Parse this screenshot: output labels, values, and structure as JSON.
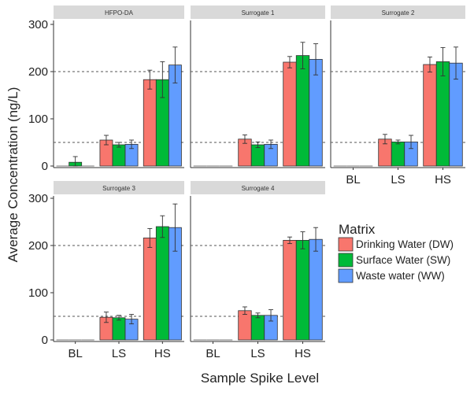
{
  "chart_data": {
    "type": "bar",
    "layout": "faceted",
    "xlabel": "Sample Spike Level",
    "ylabel": "Average Concentration (ng/L)",
    "ylim": [
      0,
      300
    ],
    "y_ticks": [
      0,
      100,
      200,
      300
    ],
    "y_tick_labels": [
      "0",
      "100",
      "200",
      "300"
    ],
    "categories": [
      "BL",
      "LS",
      "HS"
    ],
    "reference_lines": [
      50,
      200
    ],
    "grid": false,
    "legend": {
      "title": "Matrix",
      "position": "right",
      "entries": [
        {
          "name": "Drinking Water (DW)",
          "color": "#F8766D"
        },
        {
          "name": "Surface Water (SW)",
          "color": "#00BA38"
        },
        {
          "name": "Waste water (WW)",
          "color": "#619CFF"
        }
      ]
    },
    "panels": [
      {
        "title": "HFPO-DA",
        "series": [
          {
            "name": "Drinking Water (DW)",
            "values": [
              0,
              55,
              183
            ],
            "errors": [
              0,
              10,
              20
            ]
          },
          {
            "name": "Surface Water (SW)",
            "values": [
              8,
              45,
              183
            ],
            "errors": [
              12,
              5,
              38
            ]
          },
          {
            "name": "Waste water (WW)",
            "values": [
              0,
              46,
              214
            ],
            "errors": [
              0,
              9,
              38
            ]
          }
        ]
      },
      {
        "title": "Surrogate 1",
        "series": [
          {
            "name": "Drinking Water (DW)",
            "values": [
              0,
              57,
              220
            ],
            "errors": [
              0,
              9,
              12
            ]
          },
          {
            "name": "Surface Water (SW)",
            "values": [
              0,
              45,
              234
            ],
            "errors": [
              0,
              6,
              28
            ]
          },
          {
            "name": "Waste water (WW)",
            "values": [
              0,
              46,
              226
            ],
            "errors": [
              0,
              9,
              33
            ]
          }
        ]
      },
      {
        "title": "Surrogate 2",
        "series": [
          {
            "name": "Drinking Water (DW)",
            "values": [
              0,
              57,
              215
            ],
            "errors": [
              0,
              10,
              16
            ]
          },
          {
            "name": "Surface Water (SW)",
            "values": [
              0,
              51,
              221
            ],
            "errors": [
              0,
              4,
              30
            ]
          },
          {
            "name": "Waste water (WW)",
            "values": [
              0,
              51,
              218
            ],
            "errors": [
              0,
              14,
              34
            ]
          }
        ]
      },
      {
        "title": "Surrogate 3",
        "series": [
          {
            "name": "Drinking Water (DW)",
            "values": [
              0,
              48,
              216
            ],
            "errors": [
              0,
              11,
              20
            ]
          },
          {
            "name": "Surface Water (SW)",
            "values": [
              0,
              47,
              240
            ],
            "errors": [
              0,
              5,
              23
            ]
          },
          {
            "name": "Waste water (WW)",
            "values": [
              0,
              44,
              238
            ],
            "errors": [
              0,
              10,
              50
            ]
          }
        ]
      },
      {
        "title": "Surrogate 4",
        "series": [
          {
            "name": "Drinking Water (DW)",
            "values": [
              0,
              62,
              211
            ],
            "errors": [
              0,
              8,
              7
            ]
          },
          {
            "name": "Surface Water (SW)",
            "values": [
              0,
              52,
              211
            ],
            "errors": [
              0,
              5,
              18
            ]
          },
          {
            "name": "Waste water (WW)",
            "values": [
              0,
              52,
              213
            ],
            "errors": [
              0,
              12,
              25
            ]
          }
        ]
      }
    ]
  }
}
